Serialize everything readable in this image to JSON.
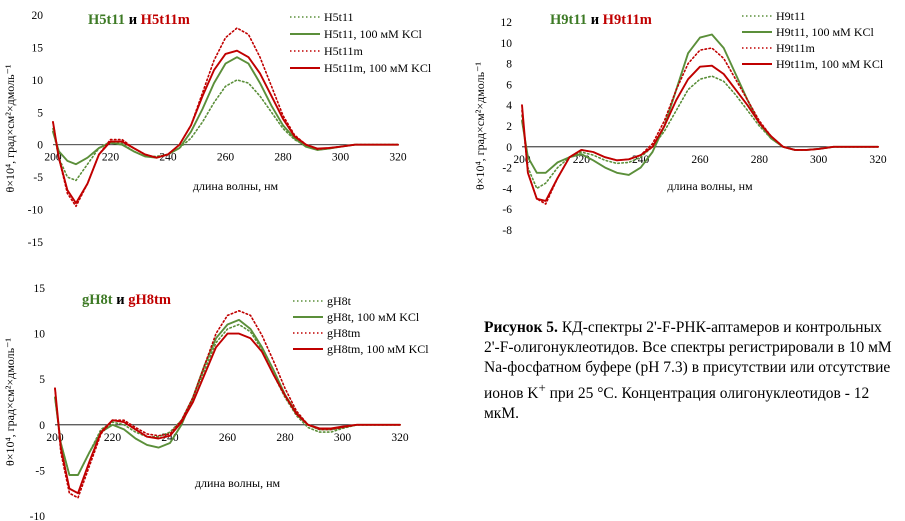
{
  "caption": {
    "label": "Рисунок 5.",
    "text_before_sup": "КД-спектры 2'-F-РНК-аптамеров и контрольных 2'-F-олигонуклеотидов. Все спектры регистрировали в 10 мМ Na-фосфатном буфере (pH 7.3) в присутствии или отсутствие ионов K",
    "sup": "+",
    "text_after_sup": " при 25 °C. Концентрация олигонуклеотидов - 12 мкМ."
  },
  "colors": {
    "green": "#5b8f3a",
    "red": "#c00000",
    "title_green": "#3d7a25",
    "title_red": "#c00000"
  },
  "chart_data": [
    {
      "type": "line",
      "title_parts": [
        "H5t11",
        " и ",
        "H5t11m"
      ],
      "xlabel": "длина волны, нм",
      "ylabel": "θ×10⁴, град×см²×дмоль⁻¹",
      "xlim": [
        200,
        320
      ],
      "ylim": [
        -15,
        20
      ],
      "xticks": [
        200,
        220,
        240,
        260,
        280,
        300,
        320
      ],
      "yticks": [
        -15,
        -10,
        -5,
        0,
        5,
        10,
        15,
        20
      ],
      "series": [
        {
          "name": "H5t11",
          "color": "green",
          "style": "dotted",
          "x": [
            200,
            202,
            205,
            208,
            212,
            216,
            220,
            224,
            228,
            232,
            236,
            240,
            244,
            248,
            252,
            256,
            260,
            264,
            268,
            272,
            276,
            280,
            284,
            288,
            292,
            296,
            300,
            305,
            310,
            315,
            320
          ],
          "y": [
            2.5,
            -2,
            -5,
            -5.5,
            -3,
            -0.5,
            0.5,
            0.2,
            -1,
            -1.8,
            -1.8,
            -1.5,
            -0.5,
            1,
            3.5,
            6.5,
            9,
            10,
            9.5,
            7.5,
            5,
            2.5,
            0.8,
            -0.2,
            -0.8,
            -0.6,
            -0.3,
            0,
            0,
            0,
            0
          ]
        },
        {
          "name": "H5t11, 100 мМ KCl",
          "color": "green",
          "style": "solid",
          "x": [
            200,
            202,
            205,
            208,
            212,
            216,
            220,
            224,
            228,
            232,
            236,
            240,
            244,
            248,
            252,
            256,
            260,
            264,
            268,
            272,
            276,
            280,
            284,
            288,
            292,
            296,
            300,
            305,
            310,
            315,
            320
          ],
          "y": [
            2,
            -1,
            -2.5,
            -3,
            -2,
            -0.5,
            0.3,
            0,
            -1,
            -1.8,
            -2,
            -1.5,
            -0.5,
            2,
            5.5,
            9.5,
            12.5,
            13.5,
            12.5,
            9.5,
            6,
            3,
            1,
            -0.3,
            -0.8,
            -0.6,
            -0.3,
            0,
            0,
            0,
            0
          ]
        },
        {
          "name": "H5t11m",
          "color": "red",
          "style": "dotted",
          "x": [
            200,
            202,
            205,
            208,
            212,
            216,
            220,
            224,
            228,
            232,
            236,
            240,
            244,
            248,
            252,
            256,
            260,
            264,
            268,
            272,
            276,
            280,
            284,
            288,
            292,
            296,
            300,
            305,
            310,
            315,
            320
          ],
          "y": [
            3.5,
            -2,
            -7.5,
            -9.5,
            -6,
            -1.5,
            0.8,
            0.8,
            -0.5,
            -1.5,
            -2,
            -1.5,
            0,
            3,
            8,
            13,
            16.5,
            18,
            17,
            13.5,
            9,
            4.5,
            1.5,
            0,
            -0.7,
            -0.5,
            -0.3,
            0,
            0,
            0,
            0
          ]
        },
        {
          "name": "H5t11m, 100 мМ KCl",
          "color": "red",
          "style": "solid",
          "x": [
            200,
            202,
            205,
            208,
            212,
            216,
            220,
            224,
            228,
            232,
            236,
            240,
            244,
            248,
            252,
            256,
            260,
            264,
            268,
            272,
            276,
            280,
            284,
            288,
            292,
            296,
            300,
            305,
            310,
            315,
            320
          ],
          "y": [
            3.5,
            -2,
            -7,
            -9,
            -6,
            -1.5,
            0.5,
            0.5,
            -0.5,
            -1.5,
            -2,
            -1.5,
            0,
            3,
            7.5,
            11.5,
            14,
            14.5,
            13.5,
            11,
            7.5,
            4,
            1.3,
            0,
            -0.6,
            -0.5,
            -0.3,
            0,
            0,
            0,
            0
          ]
        }
      ]
    },
    {
      "type": "line",
      "title_parts": [
        "H9t11",
        " и ",
        "H9t11m"
      ],
      "xlabel": "длина волны, нм",
      "ylabel": "θ×10⁴, град×см²×дмоль⁻¹",
      "xlim": [
        200,
        320
      ],
      "ylim": [
        -8,
        12
      ],
      "xticks": [
        200,
        220,
        240,
        260,
        280,
        300,
        320
      ],
      "yticks": [
        -8,
        -6,
        -4,
        -2,
        0,
        2,
        4,
        6,
        8,
        10,
        12
      ],
      "series": [
        {
          "name": "H9t11",
          "color": "green",
          "style": "dotted",
          "x": [
            200,
            202,
            205,
            208,
            212,
            216,
            220,
            224,
            228,
            232,
            236,
            240,
            244,
            248,
            252,
            256,
            260,
            264,
            268,
            272,
            276,
            280,
            284,
            288,
            292,
            296,
            300,
            305,
            310,
            315,
            320
          ],
          "y": [
            3,
            -2,
            -4,
            -3.5,
            -2,
            -1,
            -0.5,
            -0.8,
            -1.3,
            -1.6,
            -1.5,
            -1,
            0,
            1.5,
            3.5,
            5.5,
            6.5,
            6.8,
            6.3,
            5,
            3.5,
            2,
            0.8,
            0,
            -0.3,
            -0.3,
            -0.2,
            0,
            0,
            0,
            0
          ]
        },
        {
          "name": "H9t11, 100 мМ KCl",
          "color": "green",
          "style": "solid",
          "x": [
            200,
            202,
            205,
            208,
            212,
            216,
            220,
            224,
            228,
            232,
            236,
            240,
            244,
            248,
            252,
            256,
            260,
            264,
            268,
            272,
            276,
            280,
            284,
            288,
            292,
            296,
            300,
            305,
            310,
            315,
            320
          ],
          "y": [
            2.5,
            -1,
            -2.5,
            -2.5,
            -1.5,
            -1,
            -0.7,
            -1.3,
            -2,
            -2.5,
            -2.7,
            -2,
            -0.5,
            2,
            5.5,
            9,
            10.5,
            10.8,
            9.5,
            7,
            4.5,
            2.3,
            0.8,
            0,
            -0.3,
            -0.3,
            -0.2,
            0,
            0,
            0,
            0
          ]
        },
        {
          "name": "H9t11m",
          "color": "red",
          "style": "dotted",
          "x": [
            200,
            202,
            205,
            208,
            212,
            216,
            220,
            224,
            228,
            232,
            236,
            240,
            244,
            248,
            252,
            256,
            260,
            264,
            268,
            272,
            276,
            280,
            284,
            288,
            292,
            296,
            300,
            305,
            310,
            315,
            320
          ],
          "y": [
            3.5,
            -2.5,
            -5,
            -5.5,
            -3,
            -1,
            -0.3,
            -0.5,
            -1,
            -1.3,
            -1.2,
            -0.8,
            0.3,
            2.5,
            5.5,
            8,
            9.3,
            9.5,
            8.5,
            6.5,
            4.5,
            2.5,
            1,
            0,
            -0.3,
            -0.3,
            -0.2,
            0,
            0,
            0,
            0
          ]
        },
        {
          "name": "H9t11m, 100 мМ KCl",
          "color": "red",
          "style": "solid",
          "x": [
            200,
            202,
            205,
            208,
            212,
            216,
            220,
            224,
            228,
            232,
            236,
            240,
            244,
            248,
            252,
            256,
            260,
            264,
            268,
            272,
            276,
            280,
            284,
            288,
            292,
            296,
            300,
            305,
            310,
            315,
            320
          ],
          "y": [
            4,
            -2.5,
            -5,
            -5.2,
            -3,
            -1,
            -0.3,
            -0.5,
            -1,
            -1.3,
            -1.2,
            -0.8,
            0,
            2,
            4.5,
            6.5,
            7.7,
            7.8,
            7,
            5.5,
            4,
            2.3,
            1,
            0,
            -0.3,
            -0.3,
            -0.2,
            0,
            0,
            0,
            0
          ]
        }
      ]
    },
    {
      "type": "line",
      "title_parts": [
        "gH8t",
        " и ",
        "gH8tm"
      ],
      "xlabel": "длина волны, нм",
      "ylabel": "θ×10⁴, град×см²×дмоль⁻¹",
      "xlim": [
        200,
        320
      ],
      "ylim": [
        -10,
        15
      ],
      "xticks": [
        200,
        220,
        240,
        260,
        280,
        300,
        320
      ],
      "yticks": [
        -10,
        -5,
        0,
        5,
        10,
        15
      ],
      "series": [
        {
          "name": "gH8t",
          "color": "green",
          "style": "dotted",
          "x": [
            200,
            202,
            205,
            208,
            212,
            216,
            220,
            224,
            228,
            232,
            236,
            240,
            244,
            248,
            252,
            256,
            260,
            264,
            268,
            272,
            276,
            280,
            284,
            288,
            292,
            296,
            300,
            305,
            310,
            315,
            320
          ],
          "y": [
            3,
            -2,
            -5.5,
            -5.5,
            -3,
            -0.5,
            0.3,
            0,
            -0.8,
            -1.3,
            -1.3,
            -0.8,
            0.5,
            3,
            6,
            9,
            10.5,
            11,
            10.2,
            8.2,
            5.5,
            3,
            1,
            -0.3,
            -0.8,
            -0.8,
            -0.4,
            0,
            0,
            0,
            0
          ]
        },
        {
          "name": "gH8t, 100 мМ KCl",
          "color": "green",
          "style": "solid",
          "x": [
            200,
            202,
            205,
            208,
            212,
            216,
            220,
            224,
            228,
            232,
            236,
            240,
            244,
            248,
            252,
            256,
            260,
            264,
            268,
            272,
            276,
            280,
            284,
            288,
            292,
            296,
            300,
            305,
            310,
            315,
            320
          ],
          "y": [
            3,
            -2,
            -5.5,
            -5.5,
            -3,
            -0.8,
            0,
            -0.5,
            -1.5,
            -2.2,
            -2.5,
            -2,
            0,
            3,
            6.5,
            9.5,
            11,
            11.5,
            10.5,
            8.5,
            6,
            3.3,
            1.3,
            0,
            -0.5,
            -0.5,
            -0.3,
            0,
            0,
            0,
            0
          ]
        },
        {
          "name": "gH8tm",
          "color": "red",
          "style": "dotted",
          "x": [
            200,
            202,
            205,
            208,
            212,
            216,
            220,
            224,
            228,
            232,
            236,
            240,
            244,
            248,
            252,
            256,
            260,
            264,
            268,
            272,
            276,
            280,
            284,
            288,
            292,
            296,
            300,
            305,
            310,
            315,
            320
          ],
          "y": [
            4,
            -3,
            -7.5,
            -8,
            -4.5,
            -1,
            0.5,
            0.5,
            -0.3,
            -1,
            -1.2,
            -1,
            0.5,
            3,
            6.5,
            10,
            12,
            12.5,
            12,
            9.8,
            7,
            4,
            1.5,
            0,
            -0.5,
            -0.5,
            -0.3,
            0,
            0,
            0,
            0
          ]
        },
        {
          "name": "gH8tm, 100 мМ KCl",
          "color": "red",
          "style": "solid",
          "x": [
            200,
            202,
            205,
            208,
            212,
            216,
            220,
            224,
            228,
            232,
            236,
            240,
            244,
            248,
            252,
            256,
            260,
            264,
            268,
            272,
            276,
            280,
            284,
            288,
            292,
            296,
            300,
            305,
            310,
            315,
            320
          ],
          "y": [
            4,
            -2.5,
            -7,
            -7.5,
            -4,
            -0.8,
            0.5,
            0.3,
            -0.5,
            -1.3,
            -1.5,
            -1.2,
            0.3,
            2.5,
            5.5,
            8.5,
            10,
            10,
            9.5,
            8,
            5.5,
            3.2,
            1.2,
            0,
            -0.4,
            -0.4,
            -0.2,
            0,
            0,
            0,
            0
          ]
        }
      ]
    }
  ]
}
